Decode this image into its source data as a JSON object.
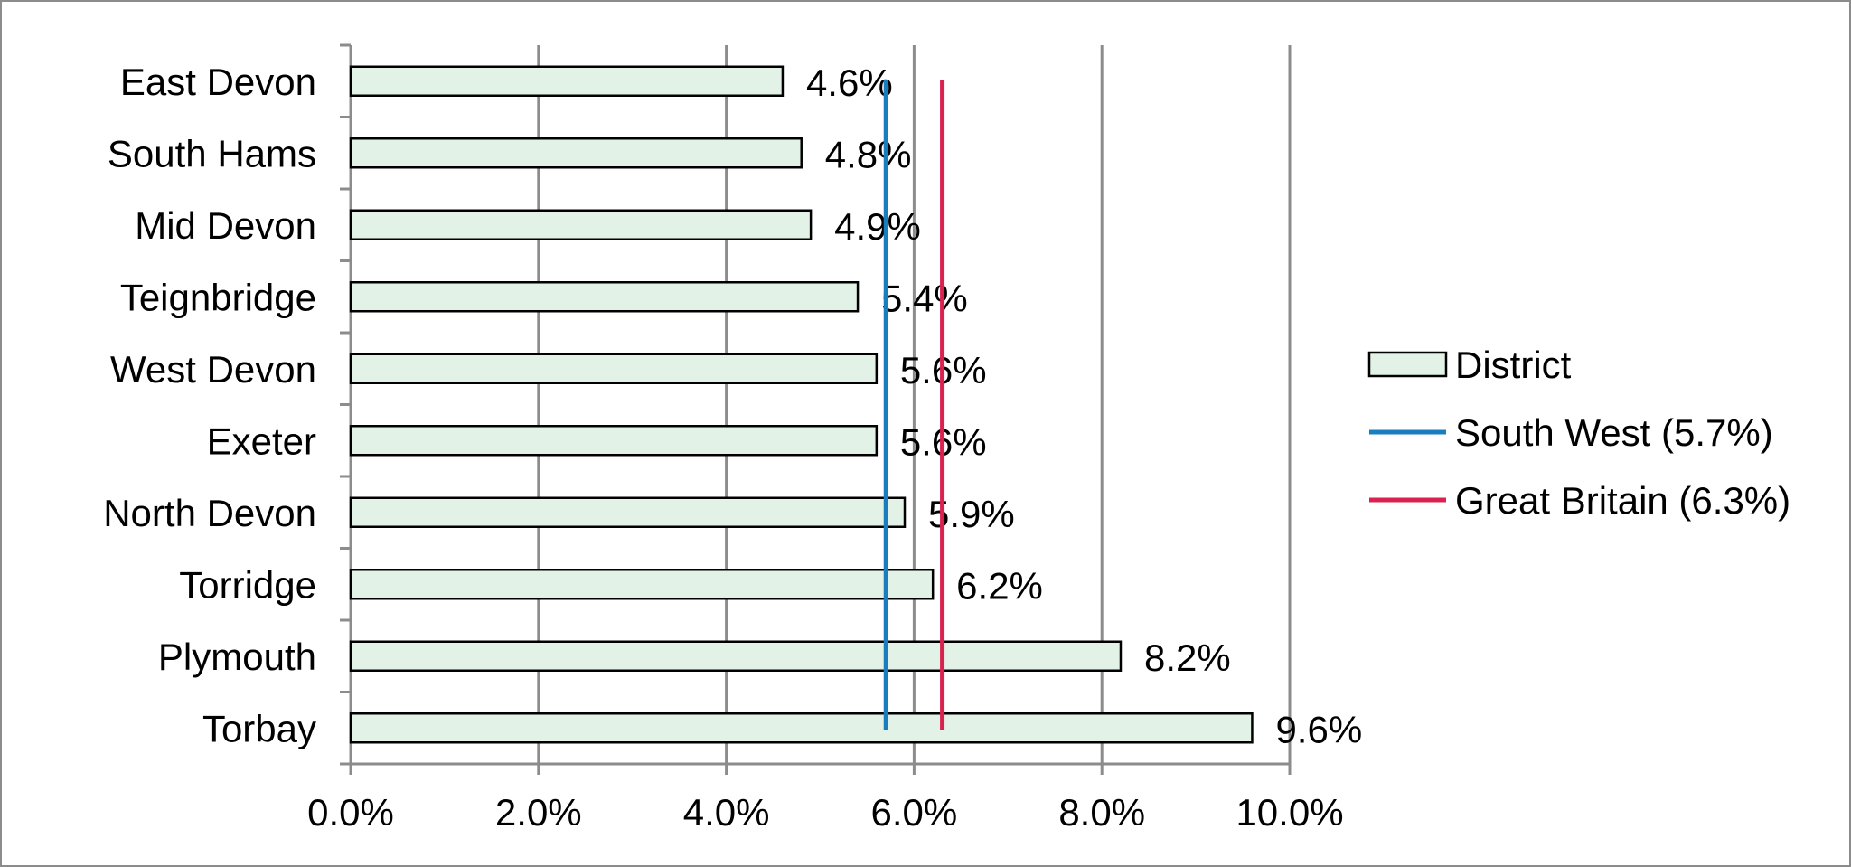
{
  "chart_data": {
    "type": "bar",
    "orientation": "horizontal",
    "categories": [
      "East Devon",
      "South Hams",
      "Mid Devon",
      "Teignbridge",
      "West Devon",
      "Exeter",
      "North Devon",
      "Torridge",
      "Plymouth",
      "Torbay"
    ],
    "series": [
      {
        "name": "District",
        "values": [
          4.6,
          4.8,
          4.9,
          5.4,
          5.6,
          5.6,
          5.9,
          6.2,
          8.2,
          9.6
        ],
        "labels": [
          "4.6%",
          "4.8%",
          "4.9%",
          "5.4%",
          "5.6%",
          "5.6%",
          "5.9%",
          "6.2%",
          "8.2%",
          "9.6%"
        ],
        "color": "#e2f2e6",
        "edge_color": "#000000"
      }
    ],
    "reference_lines": [
      {
        "name": "South West (5.7%)",
        "value": 5.7,
        "color": "#1a7dc0"
      },
      {
        "name": "Great Britain (6.3%)",
        "value": 6.3,
        "color": "#d9234f"
      }
    ],
    "xlim": [
      0,
      10
    ],
    "x_ticks": [
      0,
      2,
      4,
      6,
      8,
      10
    ],
    "x_tick_labels": [
      "0.0%",
      "2.0%",
      "4.0%",
      "6.0%",
      "8.0%",
      "10.0%"
    ],
    "grid": "vertical",
    "legend_position": "right",
    "grid_color": "#8c8c8c"
  }
}
